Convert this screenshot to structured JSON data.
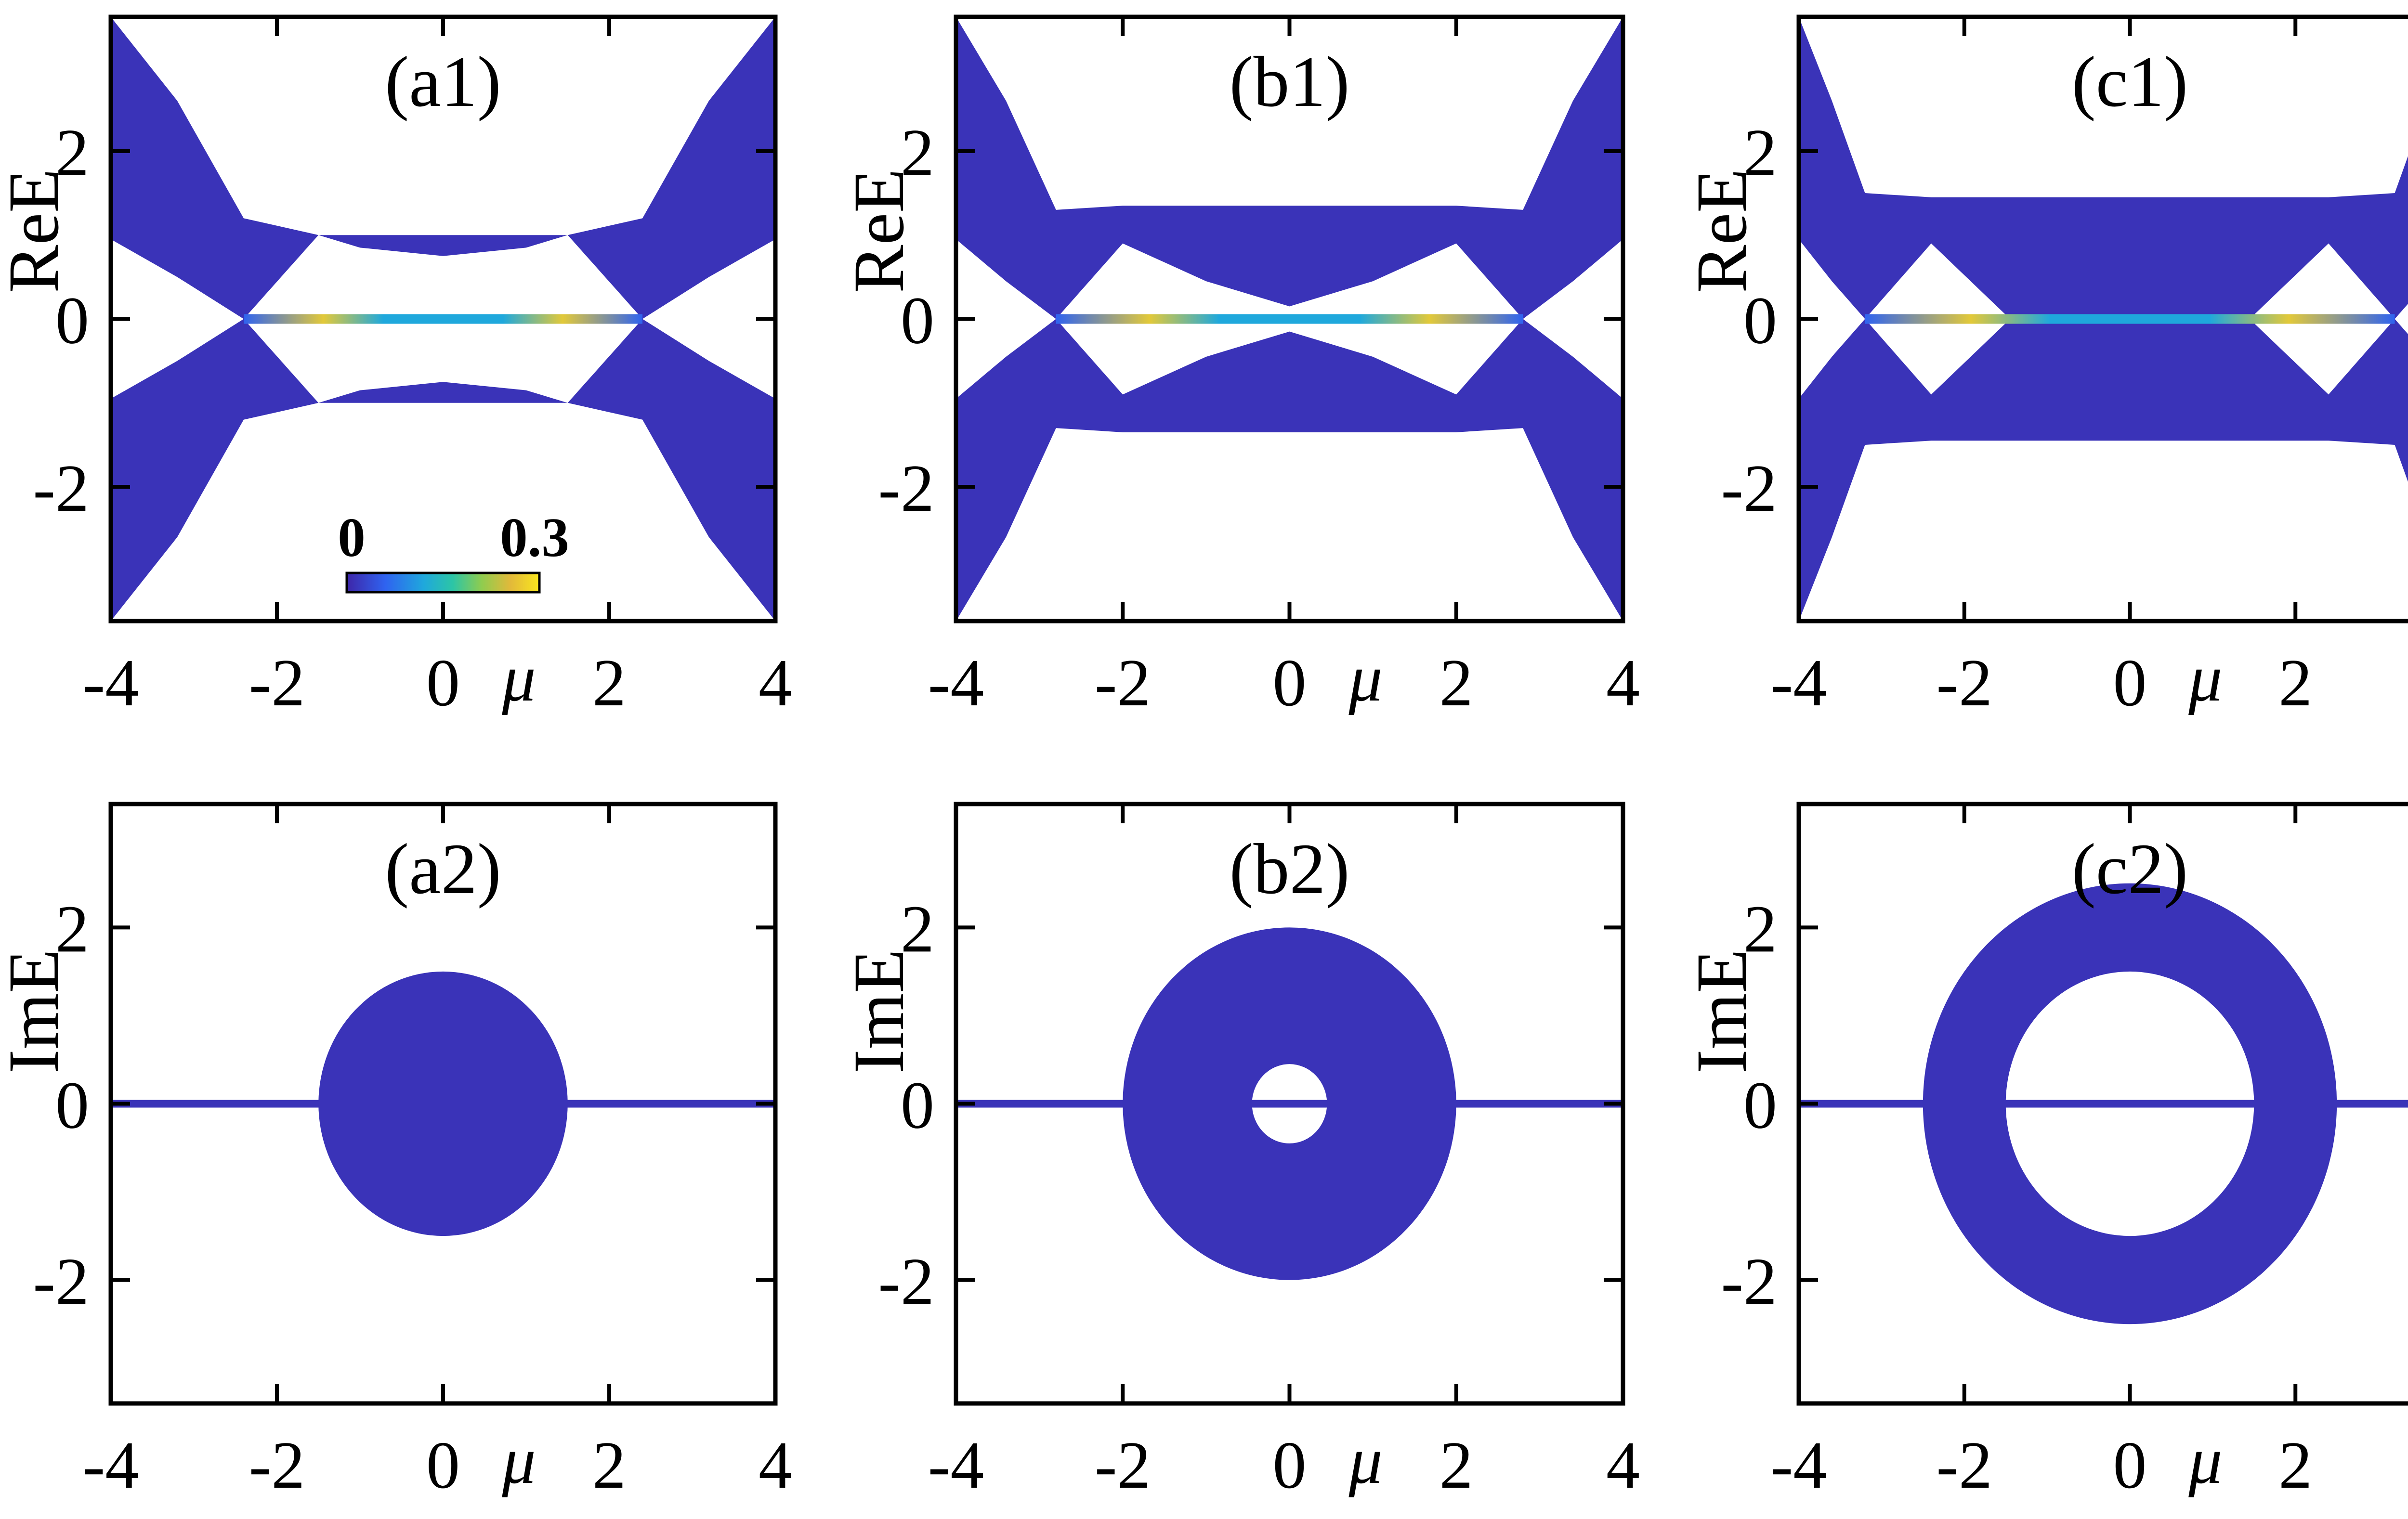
{
  "colors": {
    "band": "#3a33b8",
    "band_dark": "#332ca8",
    "frame": "#000000",
    "colormap": [
      "#3e26a8",
      "#2f63f0",
      "#1fa8dc",
      "#2cc5a6",
      "#8fcc4f",
      "#e2b93a",
      "#f9e61e"
    ]
  },
  "x_ticks": [
    "-4",
    "-2",
    "0",
    "2",
    "4"
  ],
  "x_label": "μ",
  "colorbar": {
    "min_label": "0",
    "max_label": "0.3",
    "range": [
      0,
      0.3
    ]
  },
  "chart_data": [
    {
      "id": "a1",
      "type": "area",
      "title": "(a1)",
      "xlabel": "μ",
      "ylabel": "ReE",
      "xlim": [
        -4,
        4
      ],
      "ylim": [
        -3.6,
        3.6
      ],
      "yticks": [
        "-2",
        "0",
        "2"
      ],
      "series": [
        {
          "x": [
            -4,
            -3.2,
            -2.4,
            -1.5,
            -1.0,
            0,
            1.0,
            1.5,
            2.4,
            3.2,
            4
          ],
          "outer_upper": [
            3.6,
            2.6,
            1.2,
            1.0,
            1.0,
            1.0,
            1.0,
            1.0,
            1.2,
            2.6,
            3.6
          ],
          "inner_upper": [
            0.95,
            0.5,
            0.0,
            1.0,
            0.85,
            0.75,
            0.85,
            1.0,
            0.0,
            0.5,
            0.95
          ]
        }
      ],
      "zero_mode_range": [
        -2.4,
        2.4
      ],
      "show_colorbar": true
    },
    {
      "id": "b1",
      "type": "area",
      "title": "(b1)",
      "xlabel": "μ",
      "ylabel": "ReE",
      "xlim": [
        -4,
        4
      ],
      "ylim": [
        -3.6,
        3.6
      ],
      "yticks": [
        "-2",
        "0",
        "2"
      ],
      "series": [
        {
          "x": [
            -4,
            -3.4,
            -2.8,
            -2.0,
            -1.0,
            0,
            1.0,
            2.0,
            2.8,
            3.4,
            4
          ],
          "outer_upper": [
            3.6,
            2.6,
            1.3,
            1.35,
            1.35,
            1.35,
            1.35,
            1.35,
            1.3,
            2.6,
            3.6
          ],
          "inner_upper": [
            0.95,
            0.45,
            0.0,
            0.9,
            0.45,
            0.15,
            0.45,
            0.9,
            0.0,
            0.45,
            0.95
          ]
        }
      ],
      "zero_mode_range": [
        -2.8,
        2.8
      ],
      "show_colorbar": false
    },
    {
      "id": "c1",
      "type": "area",
      "title": "(c1)",
      "xlabel": "μ",
      "ylabel": "ReE",
      "xlim": [
        -4,
        4
      ],
      "ylim": [
        -3.6,
        3.6
      ],
      "yticks": [
        "-2",
        "0",
        "2"
      ],
      "series": [
        {
          "x": [
            -4,
            -3.6,
            -3.2,
            -2.4,
            -1.5,
            0,
            1.5,
            2.4,
            3.2,
            3.6,
            4
          ],
          "outer_upper": [
            3.6,
            2.6,
            1.5,
            1.45,
            1.45,
            1.45,
            1.45,
            1.45,
            1.5,
            2.6,
            3.6
          ],
          "inner_upper": [
            0.95,
            0.45,
            0.0,
            0.9,
            0.05,
            0.0,
            0.05,
            0.9,
            0.0,
            0.45,
            0.95
          ]
        }
      ],
      "zero_mode_range": [
        -3.2,
        3.2
      ],
      "show_colorbar": false
    },
    {
      "id": "a2",
      "type": "area",
      "title": "(a2)",
      "xlabel": "μ",
      "ylabel": "ImE",
      "xlim": [
        -4,
        4
      ],
      "ylim": [
        -3.4,
        3.4
      ],
      "yticks": [
        "-2",
        "0",
        "2"
      ],
      "region": {
        "shape": "disk",
        "outer_radius_x": 1.5,
        "outer_radius_y": 1.5,
        "inner_radius": 0
      }
    },
    {
      "id": "b2",
      "type": "area",
      "title": "(b2)",
      "xlabel": "μ",
      "ylabel": "ImE",
      "xlim": [
        -4,
        4
      ],
      "ylim": [
        -3.4,
        3.4
      ],
      "yticks": [
        "-2",
        "0",
        "2"
      ],
      "region": {
        "shape": "annulus",
        "outer_radius_x": 2.0,
        "outer_radius_y": 2.0,
        "inner_radius": 0.45
      }
    },
    {
      "id": "c2",
      "type": "area",
      "title": "(c2)",
      "xlabel": "μ",
      "ylabel": "ImE",
      "xlim": [
        -4,
        4
      ],
      "ylim": [
        -3.4,
        3.4
      ],
      "yticks": [
        "-2",
        "0",
        "2"
      ],
      "region": {
        "shape": "annulus",
        "outer_radius_x": 2.5,
        "outer_radius_y": 2.5,
        "inner_radius": 1.5
      }
    }
  ]
}
